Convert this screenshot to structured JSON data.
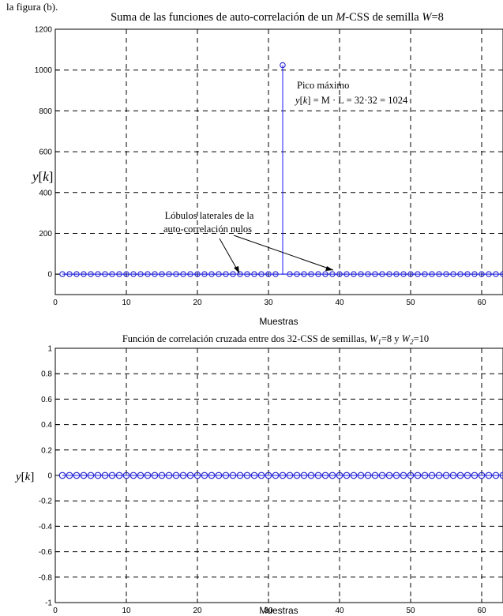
{
  "header_fragment": "la figura (b).",
  "colors": {
    "stem": "#1a1aff",
    "marker": "#2222cc",
    "grid": "#000000",
    "axis": "#000000"
  },
  "chart_data": [
    {
      "type": "stem",
      "title": {
        "pre": "Suma de las funciones de auto-correlación de un ",
        "it1": "M",
        "mid": "-CSS de semilla ",
        "it2": "W",
        "post": "=8"
      },
      "xlabel": "Muestras",
      "ylabel": {
        "var": "y",
        "idx": "k"
      },
      "xlim": [
        0,
        63
      ],
      "ylim": [
        -100,
        1200
      ],
      "xticks": [
        0,
        10,
        20,
        30,
        40,
        50,
        60
      ],
      "yticks": [
        0,
        200,
        400,
        600,
        800,
        1000,
        1200
      ],
      "grid": true,
      "x": [
        1,
        2,
        3,
        4,
        5,
        6,
        7,
        8,
        9,
        10,
        11,
        12,
        13,
        14,
        15,
        16,
        17,
        18,
        19,
        20,
        21,
        22,
        23,
        24,
        25,
        26,
        27,
        28,
        29,
        30,
        31,
        32,
        33,
        34,
        35,
        36,
        37,
        38,
        39,
        40,
        41,
        42,
        43,
        44,
        45,
        46,
        47,
        48,
        49,
        50,
        51,
        52,
        53,
        54,
        55,
        56,
        57,
        58,
        59,
        60,
        61,
        62,
        63
      ],
      "values": [
        0,
        0,
        0,
        0,
        0,
        0,
        0,
        0,
        0,
        0,
        0,
        0,
        0,
        0,
        0,
        0,
        0,
        0,
        0,
        0,
        0,
        0,
        0,
        0,
        0,
        0,
        0,
        0,
        0,
        0,
        0,
        1024,
        0,
        0,
        0,
        0,
        0,
        0,
        0,
        0,
        0,
        0,
        0,
        0,
        0,
        0,
        0,
        0,
        0,
        0,
        0,
        0,
        0,
        0,
        0,
        0,
        0,
        0,
        0,
        0,
        0,
        0,
        0
      ],
      "annotations": {
        "peak_label": "Pico máximo",
        "peak_formula": "= M · L = 32·32 = 1024",
        "peak_formula_var": "y",
        "peak_formula_idx": "k",
        "side_label_line1": "Lóbulos laterales de la",
        "side_label_line2": "auto-correlación nulos"
      }
    },
    {
      "type": "stem",
      "title": {
        "pre": "Función de correlación cruzada entre dos 32-CSS de semillas, ",
        "w1": "W",
        "s1": "1",
        "mid": "=8 y ",
        "w2": "W",
        "s2": "2",
        "post": "=10"
      },
      "xlabel": "Muestras",
      "ylabel": {
        "var": "y",
        "idx": "k"
      },
      "xlim": [
        0,
        63
      ],
      "ylim": [
        -1,
        1
      ],
      "xticks": [
        0,
        10,
        20,
        30,
        40,
        50,
        60
      ],
      "yticks": [
        -1,
        -0.8,
        -0.6,
        -0.4,
        -0.2,
        0,
        0.2,
        0.4,
        0.6,
        0.8,
        1
      ],
      "grid": true,
      "x": [
        1,
        2,
        3,
        4,
        5,
        6,
        7,
        8,
        9,
        10,
        11,
        12,
        13,
        14,
        15,
        16,
        17,
        18,
        19,
        20,
        21,
        22,
        23,
        24,
        25,
        26,
        27,
        28,
        29,
        30,
        31,
        32,
        33,
        34,
        35,
        36,
        37,
        38,
        39,
        40,
        41,
        42,
        43,
        44,
        45,
        46,
        47,
        48,
        49,
        50,
        51,
        52,
        53,
        54,
        55,
        56,
        57,
        58,
        59,
        60,
        61,
        62,
        63
      ],
      "values": [
        0,
        0,
        0,
        0,
        0,
        0,
        0,
        0,
        0,
        0,
        0,
        0,
        0,
        0,
        0,
        0,
        0,
        0,
        0,
        0,
        0,
        0,
        0,
        0,
        0,
        0,
        0,
        0,
        0,
        0,
        0,
        0,
        0,
        0,
        0,
        0,
        0,
        0,
        0,
        0,
        0,
        0,
        0,
        0,
        0,
        0,
        0,
        0,
        0,
        0,
        0,
        0,
        0,
        0,
        0,
        0,
        0,
        0,
        0,
        0,
        0,
        0,
        0
      ]
    }
  ]
}
